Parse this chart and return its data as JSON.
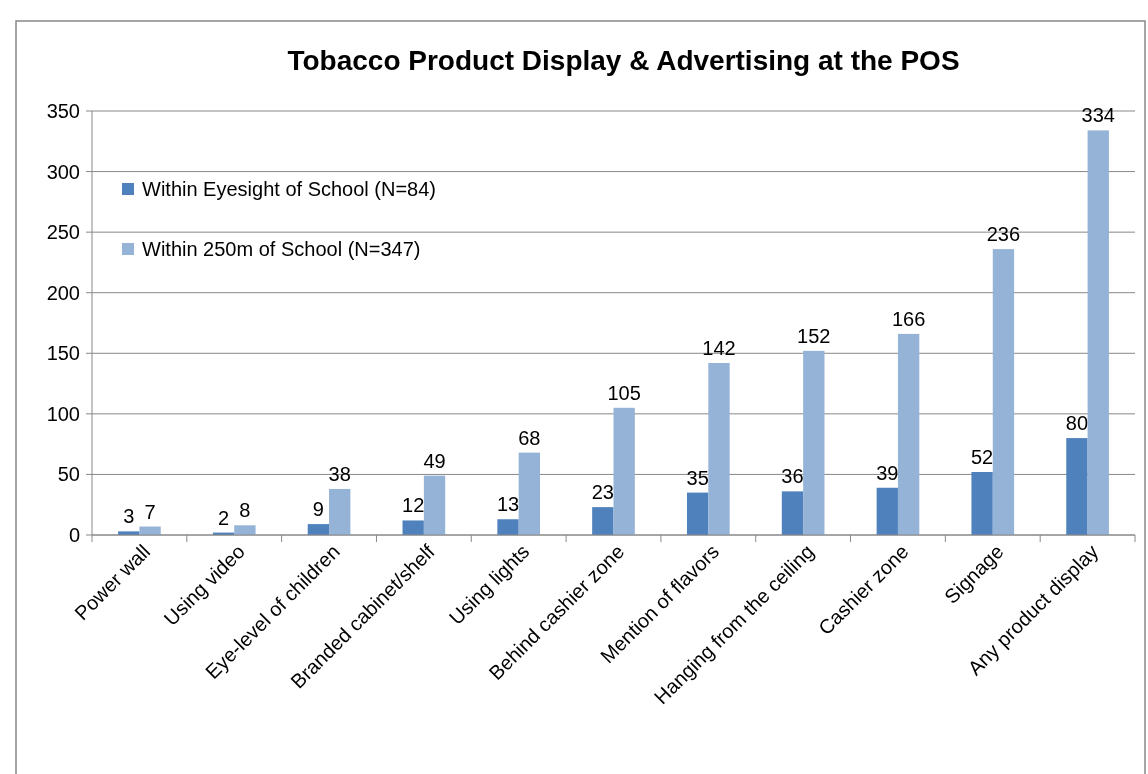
{
  "chart_data": {
    "type": "bar",
    "title": "Tobacco Product Display & Advertising at the POS",
    "categories": [
      "Power wall",
      "Using video",
      "Eye-level of children",
      "Branded cabinet/shelf",
      "Using lights",
      "Behind cashier zone",
      "Mention of flavors",
      "Hanging from the ceiling",
      "Cashier zone",
      "Signage",
      "Any product display"
    ],
    "series": [
      {
        "name": "Within Eyesight of School (N=84)",
        "color": "#4f81bd",
        "values": [
          3,
          2,
          9,
          12,
          13,
          23,
          35,
          36,
          39,
          52,
          80
        ]
      },
      {
        "name": "Within 250m of School (N=347)",
        "color": "#95b3d7",
        "values": [
          7,
          8,
          38,
          49,
          68,
          105,
          142,
          152,
          166,
          236,
          334
        ]
      }
    ],
    "ylim": [
      0,
      350
    ],
    "yticks": [
      0,
      50,
      100,
      150,
      200,
      250,
      300,
      350
    ],
    "grid": "y",
    "legend": "top left",
    "data_labels": true
  }
}
